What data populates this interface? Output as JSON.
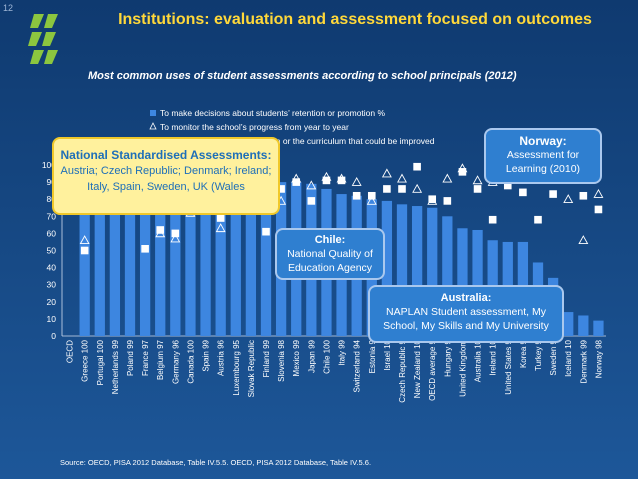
{
  "page_number": "12",
  "title": "Institutions: evaluation and assessment focused on outcomes",
  "subtitle": "Most common uses of student assessments according to school principals (2012)",
  "source": "Source: OECD, PISA 2012 Database, Table IV.5.5. OECD, PISA 2012 Database, Table IV.5.6.",
  "colors": {
    "bar": "#3d86e0",
    "title": "#ffd83a",
    "callout_yellow_bg": "#fff19d",
    "callout_blue_bg": "#2f7fd0"
  },
  "callouts": {
    "national": {
      "title": "National Standardised Assessments:",
      "text": "Austria; Czech Republic; Denmark; Ireland; Italy, Spain, Sweden, UK (Wales"
    },
    "norway": {
      "title": "Norway:",
      "text": "Assessment for Learning (2010)"
    },
    "chile": {
      "title": "Chile:",
      "text": "National Quality of Education Agency"
    },
    "australia": {
      "title": "Australia:",
      "text": "NAPLAN Student assessment, My School, My Skills and My University"
    }
  },
  "chart_data": {
    "type": "bar",
    "ylim": [
      0,
      100
    ],
    "yticks": [
      0,
      10,
      20,
      30,
      40,
      50,
      60,
      70,
      80,
      90,
      100
    ],
    "legend": {
      "position": "top",
      "entries": [
        "To make decisions about students’ retention or promotion %",
        "To monitor the school’s progress from year to year",
        "To identify aspects of instruction or the curriculum that could be improved"
      ]
    },
    "categories": [
      "OECD",
      "Greece",
      "Portugal",
      "Netherlands",
      "Poland",
      "France",
      "Belgium",
      "Germany",
      "Canada",
      "Spain",
      "Austria",
      "Luxembourg",
      "Slovak Republic",
      "Finland",
      "Slovenia",
      "Mexico",
      "Japan",
      "Chile",
      "Italy",
      "Switzerland",
      "Estonia",
      "Israel",
      "Czech Republic",
      "New Zealand",
      "OECD average",
      "Hungary",
      "United Kingdom",
      "Australia",
      "Ireland",
      "United States",
      "Korea",
      "Turkey",
      "Sweden",
      "Iceland",
      "Denmark",
      "Norway"
    ],
    "category_labels": [
      "OECD",
      "Greece 100",
      "Portugal 100",
      "Netherlands 99",
      "Poland 99",
      "France 97",
      "Belgium 97",
      "Germany 96",
      "Canada 100",
      "Spain 99",
      "Austria 96",
      "Luxembourg 95",
      "Slovak Republic",
      "Finland 99",
      "Slovenia 98",
      "Mexico 99",
      "Japan 99",
      "Chile 100",
      "Italy 99",
      "Switzerland 94",
      "Estonia 9",
      "Israel 10",
      "Czech Republic 9",
      "New Zealand 10",
      "OECD average 9",
      "Hungary 9",
      "United Kingdom",
      "Australia 10",
      "Ireland 10",
      "United States 9",
      "Korea 9",
      "Turkey 9",
      "Sweden 9",
      "Iceland 10",
      "Denmark 99",
      "Norway 98"
    ],
    "series": [
      {
        "name": "To make decisions about students’ retention or promotion %",
        "marker": "bar",
        "values": [
          null,
          99,
          98,
          98,
          97,
          96,
          96,
          95,
          94,
          93,
          92,
          92,
          91,
          91,
          90,
          90,
          89,
          86,
          83,
          82,
          80,
          79,
          77,
          76,
          75,
          70,
          63,
          62,
          56,
          55,
          55,
          43,
          34,
          14,
          12,
          9
        ]
      },
      {
        "name": "To monitor the school’s progress from year to year",
        "marker": "triangle",
        "values": [
          null,
          56,
          96,
          92,
          88,
          96,
          60,
          57,
          72,
          90,
          63,
          90,
          85,
          82,
          79,
          92,
          88,
          93,
          92,
          90,
          79,
          95,
          92,
          86,
          79,
          92,
          98,
          91,
          90,
          94,
          93,
          94,
          92,
          80,
          56,
          83
        ]
      },
      {
        "name": "To identify aspects of instruction or the curriculum that could be improved",
        "marker": "square",
        "values": [
          null,
          50,
          85,
          88,
          86,
          51,
          62,
          60,
          80,
          89,
          69,
          88,
          84,
          61,
          86,
          90,
          79,
          91,
          91,
          82,
          82,
          86,
          86,
          99,
          80,
          79,
          96,
          86,
          68,
          88,
          84,
          68,
          83,
          92,
          82,
          74
        ]
      }
    ]
  }
}
